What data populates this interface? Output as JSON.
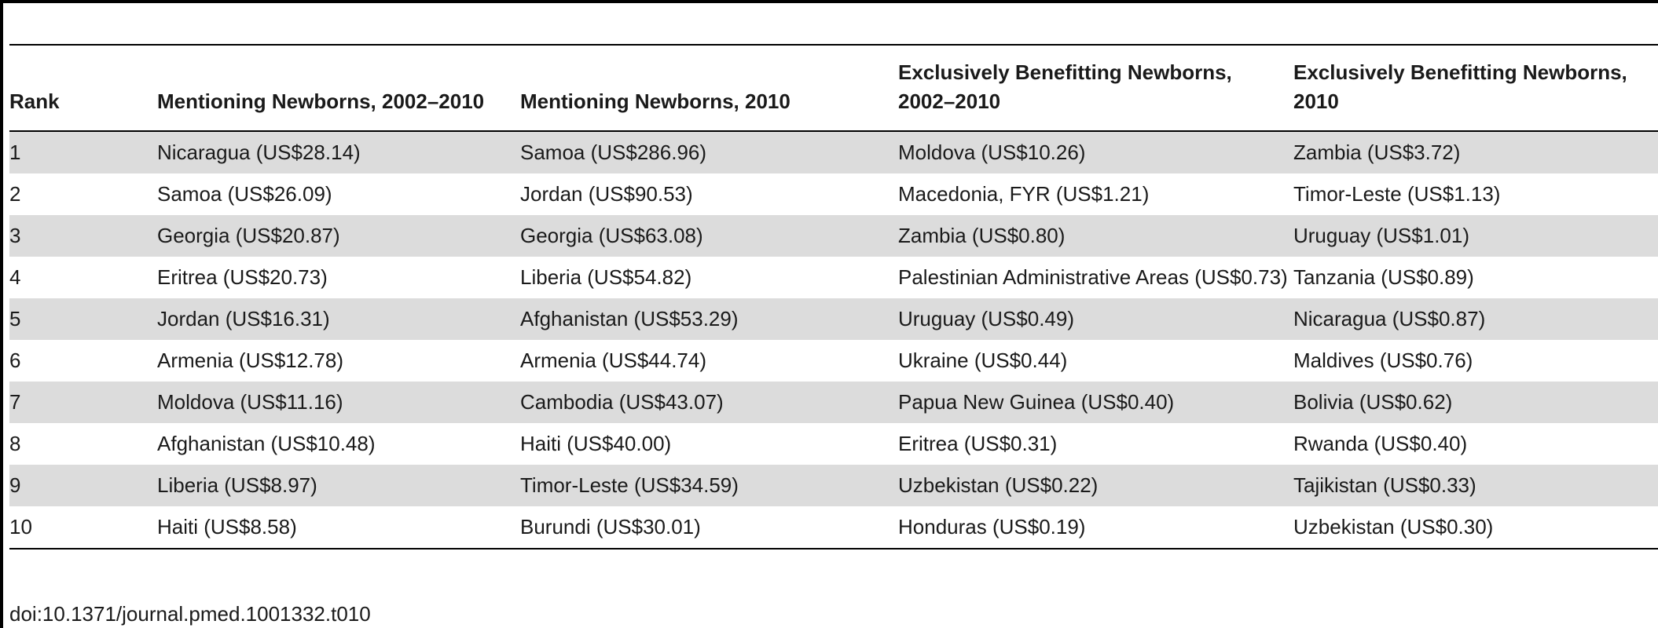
{
  "table": {
    "headers": [
      "Rank",
      "Mentioning Newborns, 2002–2010",
      "Mentioning Newborns, 2010",
      "Exclusively Benefitting Newborns, 2002–2010",
      "Exclusively Benefitting Newborns, 2010"
    ],
    "rows": [
      [
        "1",
        "Nicaragua (US$28.14)",
        "Samoa (US$286.96)",
        "Moldova (US$10.26)",
        "Zambia (US$3.72)"
      ],
      [
        "2",
        "Samoa (US$26.09)",
        "Jordan (US$90.53)",
        "Macedonia, FYR (US$1.21)",
        "Timor-Leste (US$1.13)"
      ],
      [
        "3",
        "Georgia (US$20.87)",
        "Georgia (US$63.08)",
        "Zambia (US$0.80)",
        "Uruguay (US$1.01)"
      ],
      [
        "4",
        "Eritrea (US$20.73)",
        "Liberia (US$54.82)",
        "Palestinian Administrative Areas (US$0.73)",
        "Tanzania (US$0.89)"
      ],
      [
        "5",
        "Jordan (US$16.31)",
        "Afghanistan (US$53.29)",
        "Uruguay (US$0.49)",
        "Nicaragua (US$0.87)"
      ],
      [
        "6",
        "Armenia (US$12.78)",
        "Armenia (US$44.74)",
        "Ukraine (US$0.44)",
        "Maldives (US$0.76)"
      ],
      [
        "7",
        "Moldova (US$11.16)",
        "Cambodia (US$43.07)",
        "Papua New Guinea (US$0.40)",
        "Bolivia (US$0.62)"
      ],
      [
        "8",
        "Afghanistan (US$10.48)",
        "Haiti (US$40.00)",
        "Eritrea (US$0.31)",
        "Rwanda (US$0.40)"
      ],
      [
        "9",
        "Liberia (US$8.97)",
        "Timor-Leste (US$34.59)",
        "Uzbekistan (US$0.22)",
        "Tajikistan (US$0.33)"
      ],
      [
        "10",
        "Haiti (US$8.58)",
        "Burundi (US$30.01)",
        "Honduras (US$0.19)",
        "Uzbekistan (US$0.30)"
      ]
    ]
  },
  "footer": {
    "doi": "doi:10.1371/journal.pmed.1001332.t010"
  }
}
